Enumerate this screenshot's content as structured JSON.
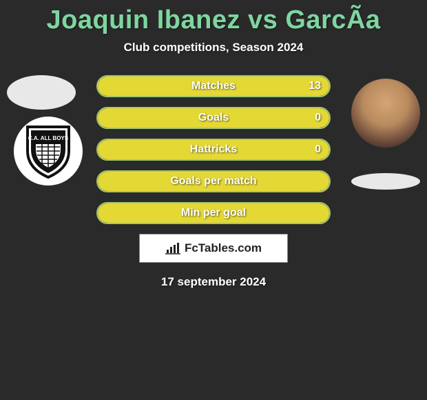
{
  "title": "Joaquin Ibanez vs GarcÃa",
  "subtitle": "Club competitions, Season 2024",
  "colors": {
    "background": "#2a2a2a",
    "title_color": "#7ed6a0",
    "text_color": "#ffffff",
    "bar_border": "#a3c76d",
    "bar_fill": "#e4d835",
    "avatar_bg": "#e8e8e8"
  },
  "left_badge_text": "C.A. ALL BOYS",
  "stats": [
    {
      "label": "Matches",
      "right_value": "13",
      "fill_pct": 100
    },
    {
      "label": "Goals",
      "right_value": "0",
      "fill_pct": 100
    },
    {
      "label": "Hattricks",
      "right_value": "0",
      "fill_pct": 100
    },
    {
      "label": "Goals per match",
      "right_value": "",
      "fill_pct": 100
    },
    {
      "label": "Min per goal",
      "right_value": "",
      "fill_pct": 100
    }
  ],
  "brand": "FcTables.com",
  "date": "17 september 2024"
}
